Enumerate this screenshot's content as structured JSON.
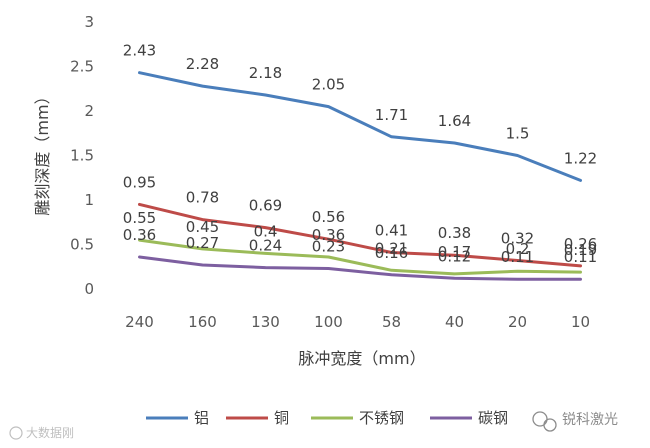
{
  "chart_data": {
    "type": "line",
    "xlabel": "脉冲宽度（mm）",
    "ylabel": "雕刻深度（mm）",
    "categories": [
      "240",
      "160",
      "130",
      "100",
      "58",
      "40",
      "20",
      "10"
    ],
    "ylim": [
      0,
      3
    ],
    "yticks": [
      "0",
      "0.5",
      "1",
      "1.5",
      "2",
      "2.5",
      "3"
    ],
    "grid": false,
    "legend": "bottom",
    "series": [
      {
        "name": "铝",
        "color": "#4a7ebb",
        "values": [
          2.43,
          2.28,
          2.18,
          2.05,
          1.71,
          1.64,
          1.5,
          1.22
        ],
        "labels": [
          "2.43",
          "2.28",
          "2.18",
          "2.05",
          "1.71",
          "1.64",
          "1.5",
          "1.22"
        ]
      },
      {
        "name": "铜",
        "color": "#be4b48",
        "values": [
          0.95,
          0.78,
          0.69,
          0.56,
          0.41,
          0.38,
          0.32,
          0.26
        ],
        "labels": [
          "0.95",
          "0.78",
          "0.69",
          "0.56",
          "0.41",
          "0.38",
          "0.32",
          "0.26"
        ]
      },
      {
        "name": "不锈钢",
        "color": "#9bbb59",
        "values": [
          0.55,
          0.45,
          0.4,
          0.36,
          0.21,
          0.17,
          0.2,
          0.19
        ],
        "labels": [
          "0.55",
          "0.45",
          "0.4",
          "0.36",
          "0.21",
          "0.17",
          "0.2",
          "0.19"
        ]
      },
      {
        "name": "碳钢",
        "color": "#7d5fa0",
        "values": [
          0.36,
          0.27,
          0.24,
          0.23,
          0.16,
          0.12,
          0.11,
          0.11
        ],
        "labels": [
          "0.36",
          "0.27",
          "0.24",
          "0.23",
          "0.16",
          "0.12",
          "0.11",
          "0.11"
        ]
      }
    ]
  },
  "watermark_left": "大数据刚",
  "watermark_right": "锐科激光"
}
